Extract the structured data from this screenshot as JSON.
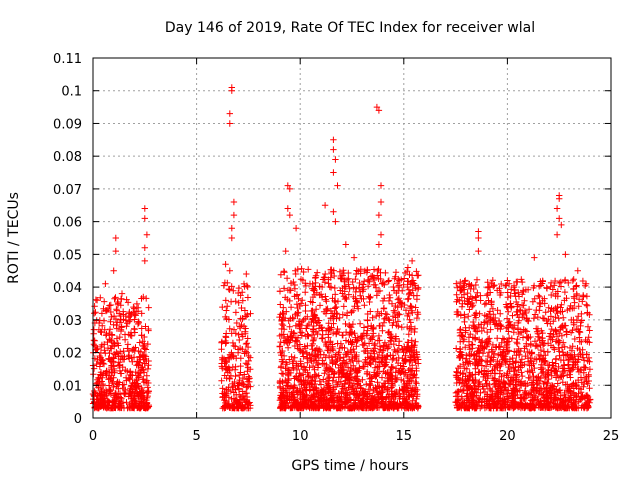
{
  "chart_data": {
    "type": "scatter",
    "title": "Day 146 of 2019, Rate Of TEC Index for receiver wlal",
    "xlabel": "GPS time / hours",
    "ylabel": "ROTI / TECUs",
    "xlim": [
      0,
      25
    ],
    "ylim": [
      0,
      0.11
    ],
    "xticks": [
      0,
      5,
      10,
      15,
      20,
      25
    ],
    "xtick_labels": [
      "0",
      "5",
      "10",
      "15",
      "20",
      "25"
    ],
    "yticks": [
      0,
      0.01,
      0.02,
      0.03,
      0.04,
      0.05,
      0.06,
      0.07,
      0.08,
      0.09,
      0.1,
      0.11
    ],
    "ytick_labels": [
      "0",
      "0.01",
      "0.02",
      "0.03",
      "0.04",
      "0.05",
      "0.06",
      "0.07",
      "0.08",
      "0.09",
      "0.1",
      "0.11"
    ],
    "grid": true,
    "marker": "+",
    "marker_color": "#ff0000",
    "clusters": [
      {
        "x_start": 0.0,
        "x_end": 2.7,
        "y_typical": 0.012,
        "y_spread": 0.01,
        "density": 220
      },
      {
        "x_start": 6.2,
        "x_end": 7.6,
        "y_typical": 0.012,
        "y_spread": 0.012,
        "density": 180
      },
      {
        "x_start": 9.0,
        "x_end": 15.7,
        "y_typical": 0.014,
        "y_spread": 0.013,
        "density": 260
      },
      {
        "x_start": 17.5,
        "x_end": 24.0,
        "y_typical": 0.013,
        "y_spread": 0.012,
        "density": 230
      }
    ],
    "notable_points": [
      {
        "x": 0.2,
        "y": 0.036
      },
      {
        "x": 0.6,
        "y": 0.041
      },
      {
        "x": 1.1,
        "y": 0.051
      },
      {
        "x": 1.1,
        "y": 0.055
      },
      {
        "x": 1.0,
        "y": 0.045
      },
      {
        "x": 1.4,
        "y": 0.038
      },
      {
        "x": 2.5,
        "y": 0.064
      },
      {
        "x": 2.5,
        "y": 0.061
      },
      {
        "x": 2.6,
        "y": 0.056
      },
      {
        "x": 2.5,
        "y": 0.052
      },
      {
        "x": 2.5,
        "y": 0.048
      },
      {
        "x": 6.7,
        "y": 0.101
      },
      {
        "x": 6.7,
        "y": 0.1
      },
      {
        "x": 6.6,
        "y": 0.093
      },
      {
        "x": 6.6,
        "y": 0.09
      },
      {
        "x": 6.8,
        "y": 0.066
      },
      {
        "x": 6.8,
        "y": 0.062
      },
      {
        "x": 6.7,
        "y": 0.058
      },
      {
        "x": 6.7,
        "y": 0.055
      },
      {
        "x": 6.4,
        "y": 0.047
      },
      {
        "x": 6.6,
        "y": 0.045
      },
      {
        "x": 7.4,
        "y": 0.044
      },
      {
        "x": 9.4,
        "y": 0.071
      },
      {
        "x": 9.5,
        "y": 0.07
      },
      {
        "x": 9.4,
        "y": 0.064
      },
      {
        "x": 9.5,
        "y": 0.062
      },
      {
        "x": 9.8,
        "y": 0.058
      },
      {
        "x": 9.3,
        "y": 0.051
      },
      {
        "x": 11.6,
        "y": 0.085
      },
      {
        "x": 11.6,
        "y": 0.082
      },
      {
        "x": 11.7,
        "y": 0.079
      },
      {
        "x": 11.6,
        "y": 0.075
      },
      {
        "x": 11.8,
        "y": 0.071
      },
      {
        "x": 11.6,
        "y": 0.063
      },
      {
        "x": 11.7,
        "y": 0.06
      },
      {
        "x": 12.2,
        "y": 0.053
      },
      {
        "x": 12.6,
        "y": 0.049
      },
      {
        "x": 11.2,
        "y": 0.065
      },
      {
        "x": 13.7,
        "y": 0.095
      },
      {
        "x": 13.8,
        "y": 0.094
      },
      {
        "x": 13.9,
        "y": 0.071
      },
      {
        "x": 13.9,
        "y": 0.066
      },
      {
        "x": 13.8,
        "y": 0.062
      },
      {
        "x": 13.9,
        "y": 0.056
      },
      {
        "x": 13.8,
        "y": 0.053
      },
      {
        "x": 15.2,
        "y": 0.046
      },
      {
        "x": 15.4,
        "y": 0.048
      },
      {
        "x": 18.6,
        "y": 0.057
      },
      {
        "x": 18.6,
        "y": 0.055
      },
      {
        "x": 18.6,
        "y": 0.051
      },
      {
        "x": 20.0,
        "y": 0.042
      },
      {
        "x": 21.3,
        "y": 0.049
      },
      {
        "x": 22.5,
        "y": 0.068
      },
      {
        "x": 22.5,
        "y": 0.067
      },
      {
        "x": 22.4,
        "y": 0.064
      },
      {
        "x": 22.5,
        "y": 0.061
      },
      {
        "x": 22.6,
        "y": 0.059
      },
      {
        "x": 22.4,
        "y": 0.056
      },
      {
        "x": 22.8,
        "y": 0.05
      },
      {
        "x": 23.4,
        "y": 0.045
      },
      {
        "x": 23.8,
        "y": 0.041
      }
    ]
  }
}
